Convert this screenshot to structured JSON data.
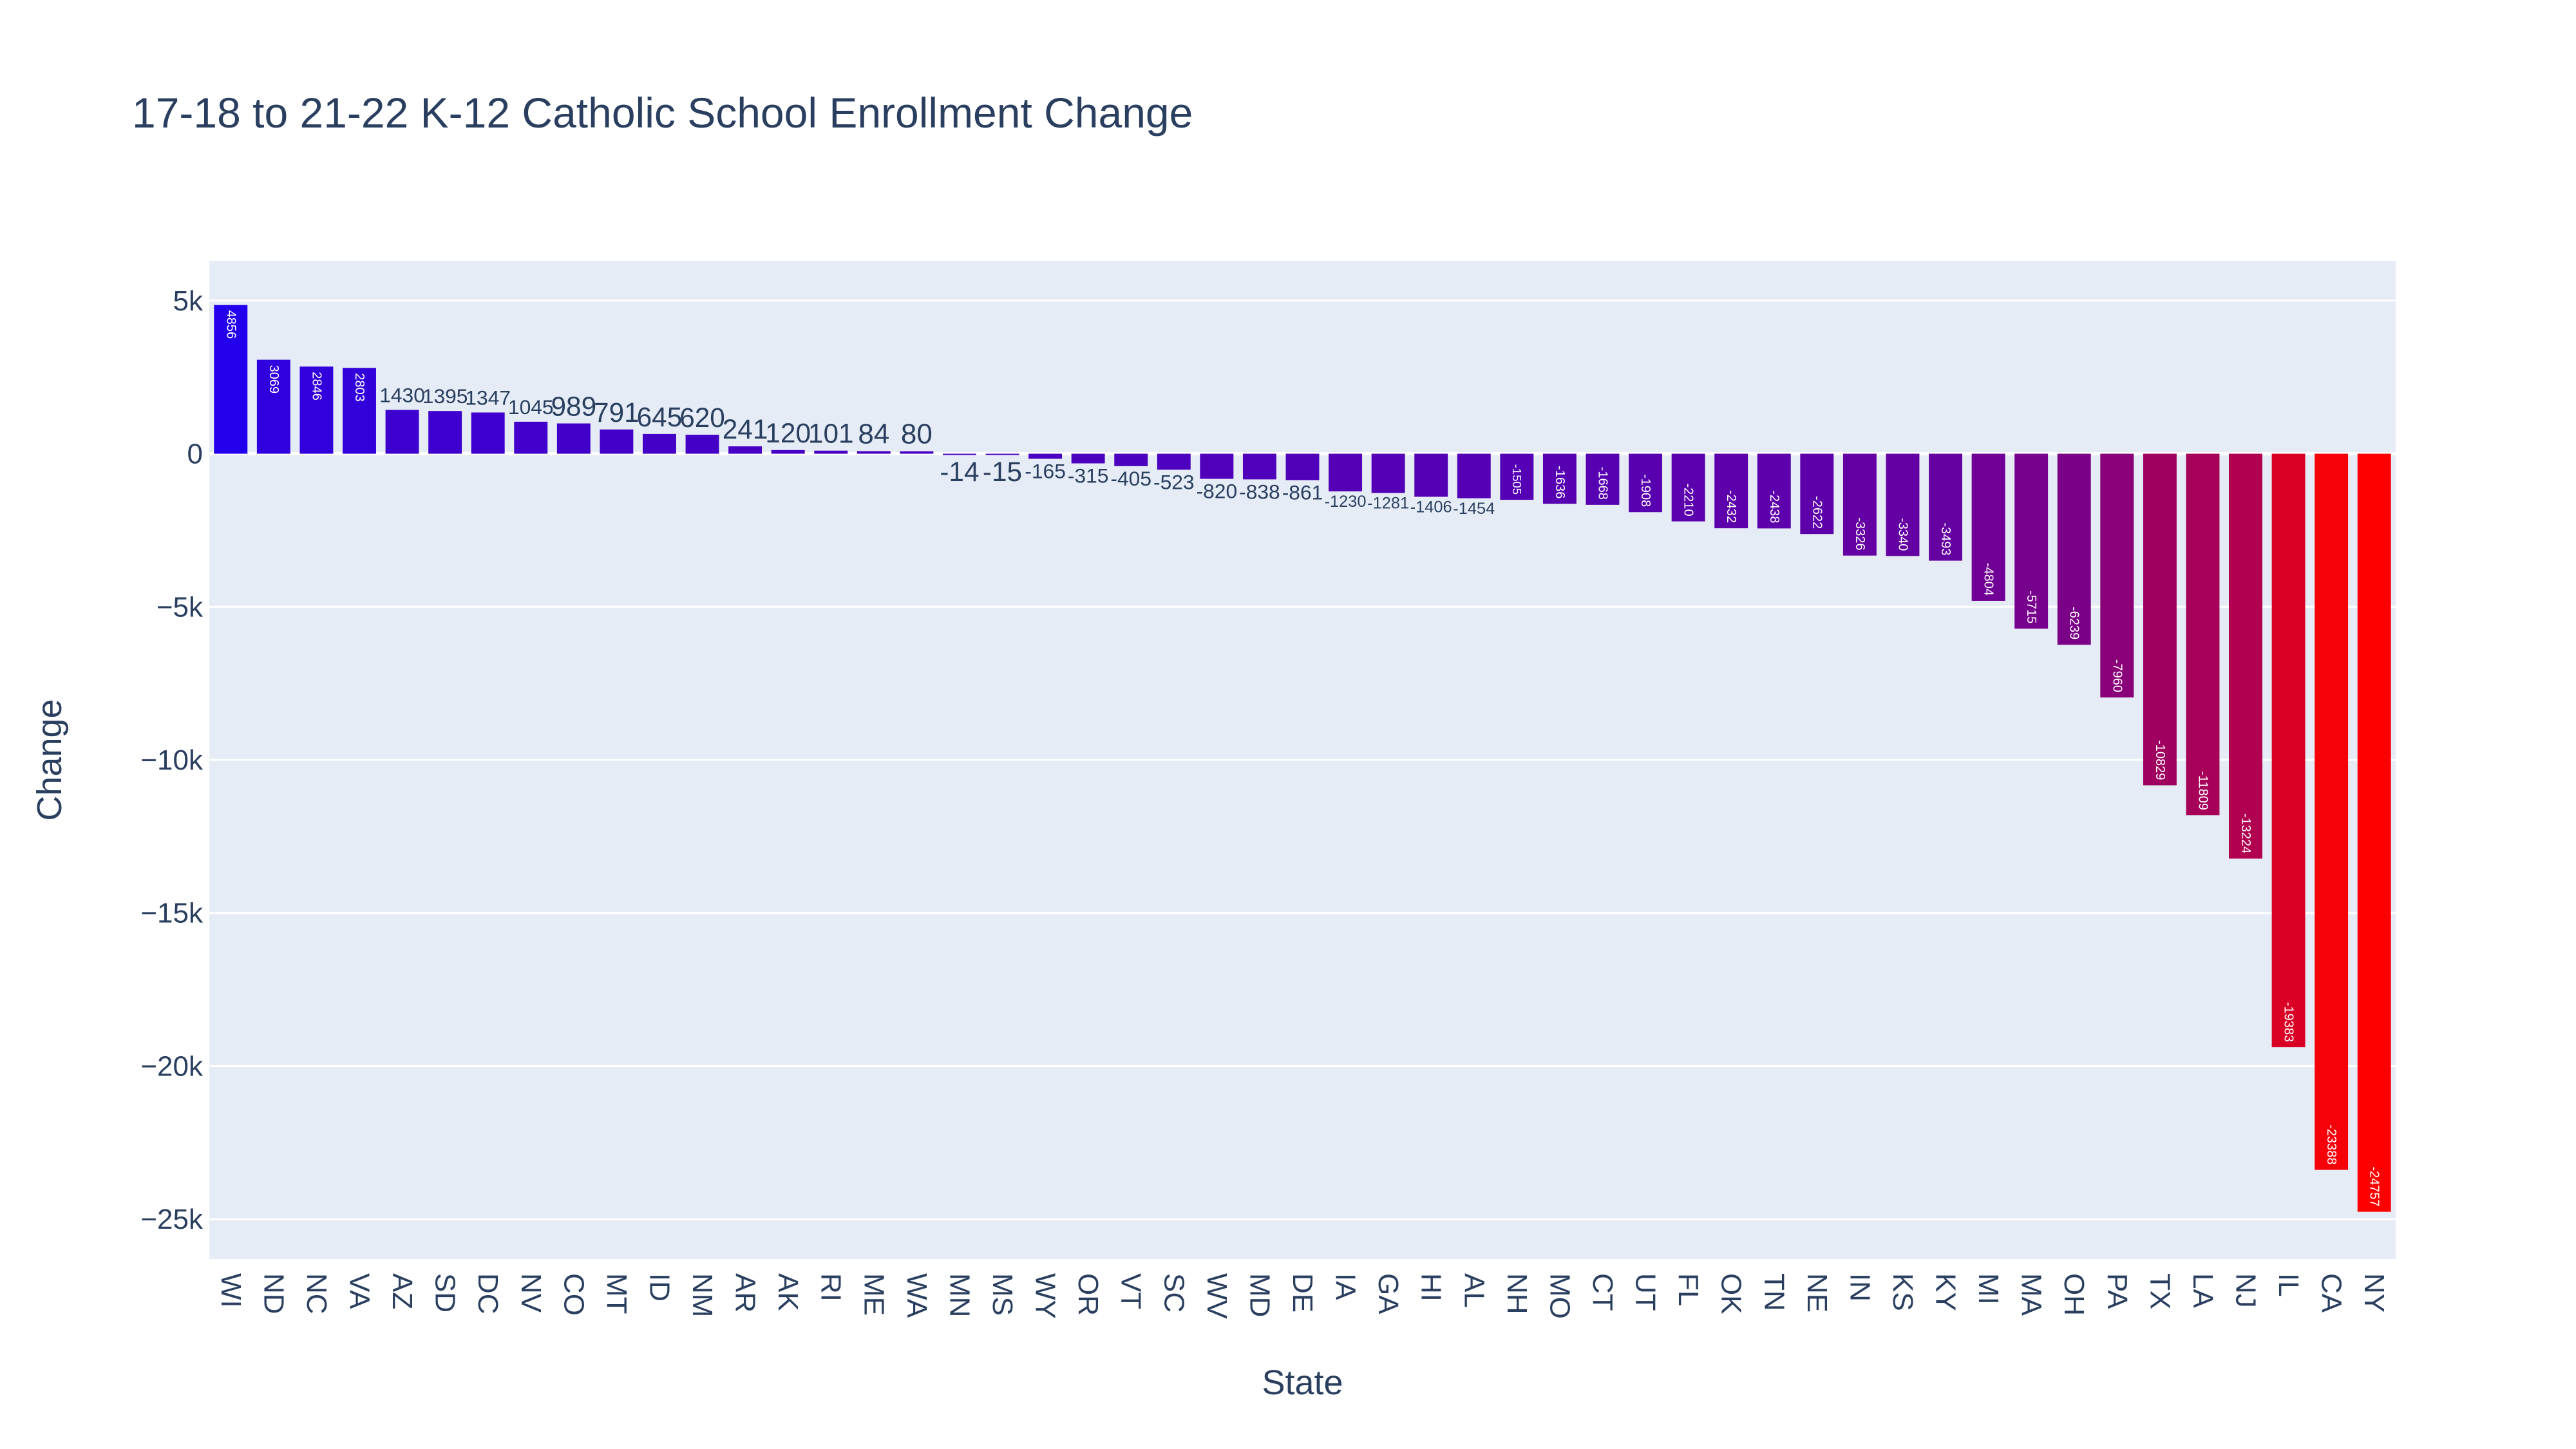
{
  "chart_data": {
    "type": "bar",
    "title": "17-18 to 21-22 K-12 Catholic School Enrollment Change",
    "xlabel": "State",
    "ylabel": "Change",
    "ylim": [
      -26300,
      6300
    ],
    "yticks": [
      5000,
      0,
      -5000,
      -10000,
      -15000,
      -20000,
      -25000
    ],
    "ytick_labels": [
      "5k",
      "0",
      "−5k",
      "−10k",
      "−15k",
      "−20k",
      "−25k"
    ],
    "grid": true,
    "legend": "none",
    "categories": [
      "WI",
      "ND",
      "NC",
      "VA",
      "AZ",
      "SD",
      "DC",
      "NV",
      "CO",
      "MT",
      "ID",
      "NM",
      "AR",
      "AK",
      "RI",
      "ME",
      "WA",
      "MN",
      "MS",
      "WY",
      "OR",
      "VT",
      "SC",
      "WV",
      "MD",
      "DE",
      "IA",
      "GA",
      "HI",
      "AL",
      "NH",
      "MO",
      "CT",
      "UT",
      "FL",
      "OK",
      "TN",
      "NE",
      "IN",
      "KS",
      "KY",
      "MI",
      "MA",
      "OH",
      "PA",
      "TX",
      "LA",
      "NJ",
      "IL",
      "CA",
      "NY"
    ],
    "values": [
      4856,
      3069,
      2846,
      2803,
      1430,
      1395,
      1347,
      1045,
      989,
      791,
      645,
      620,
      241,
      120,
      101,
      84,
      80,
      -14,
      -15,
      -165,
      -315,
      -405,
      -523,
      -820,
      -838,
      -861,
      -1230,
      -1281,
      -1406,
      -1454,
      -1505,
      -1636,
      -1668,
      -1908,
      -2210,
      -2432,
      -2438,
      -2622,
      -3326,
      -3340,
      -3493,
      -4804,
      -5715,
      -6239,
      -7960,
      -10829,
      -11809,
      -13224,
      -19383,
      -23388,
      -24757
    ],
    "colors": {
      "plot_background": "#e5ecf6",
      "gridline": "#ffffff",
      "text": "#2a3f5f",
      "scale_low": "#ff0000",
      "scale_mid": "#990066",
      "scale_high": "#2200ee"
    }
  }
}
